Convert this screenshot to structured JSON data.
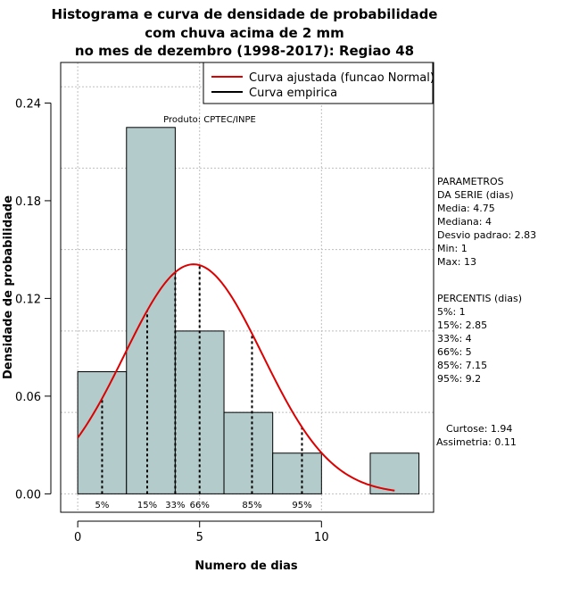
{
  "chart_data": {
    "type": "bar",
    "title_lines": [
      "Histograma e curva de densidade de probabilidade",
      "com chuva acima de 2 mm",
      "no mes de dezembro (1998-2017): Regiao 48"
    ],
    "xlabel": "Numero de dias",
    "ylabel": "Densidade de probabilidade",
    "xlim": [
      -0.7,
      14.6
    ],
    "ylim": [
      -0.0113,
      0.2649
    ],
    "x_ticks": [
      0,
      5,
      10
    ],
    "y_ticks": [
      0.0,
      0.06,
      0.12,
      0.18,
      0.24
    ],
    "y_tick_labels": [
      "0.00",
      "0.06",
      "0.12",
      "0.18",
      "0.24"
    ],
    "x_tick_labels": [
      "0",
      "5",
      "10"
    ],
    "grid": true,
    "bins": [
      {
        "x0": 0,
        "x1": 2,
        "density": 0.075
      },
      {
        "x0": 2,
        "x1": 4,
        "density": 0.225
      },
      {
        "x0": 4,
        "x1": 6,
        "density": 0.1
      },
      {
        "x0": 6,
        "x1": 8,
        "density": 0.05
      },
      {
        "x0": 8,
        "x1": 10,
        "density": 0.025
      },
      {
        "x0": 10,
        "x1": 12,
        "density": 0
      },
      {
        "x0": 12,
        "x1": 14,
        "density": 0.025
      }
    ],
    "normal_curve": {
      "mean": 4.75,
      "sd": 2.83,
      "x_from": 0,
      "x_to": 13
    },
    "percentile_lines": [
      {
        "label": "5%",
        "x": 1
      },
      {
        "label": "15%",
        "x": 2.85
      },
      {
        "label": "33%",
        "x": 4
      },
      {
        "label": "66%",
        "x": 5
      },
      {
        "label": "85%",
        "x": 7.15
      },
      {
        "label": "95%",
        "x": 9.2
      }
    ],
    "legend": {
      "position": "top-right",
      "entries": [
        {
          "label": "Curva ajustada (funcao Normal)",
          "color": "#dd0000"
        },
        {
          "label": "Curva empirica",
          "color": "#000000"
        }
      ]
    },
    "annotation": "Produto: CPTEC/INPE",
    "colors": {
      "bar_fill": "#b3cbcb",
      "curve": "#dd0000",
      "grid": "#bfbfbf"
    }
  },
  "side_panel": {
    "params_lines": [
      "PARAMETROS",
      "DA SERIE (dias)",
      "  Media: 4.75",
      "  Mediana: 4",
      "  Desvio padrao: 2.83",
      "  Min: 1",
      "  Max: 13"
    ],
    "percentis_lines": [
      "PERCENTIS (dias)",
      "   5%: 1",
      "   15%: 2.85",
      "   33%: 4",
      "   66%: 5",
      "   85%: 7.15",
      "   95%: 9.2"
    ],
    "shape_lines": [
      "Curtose: 1.94",
      "Assimetria: 0.11"
    ]
  }
}
